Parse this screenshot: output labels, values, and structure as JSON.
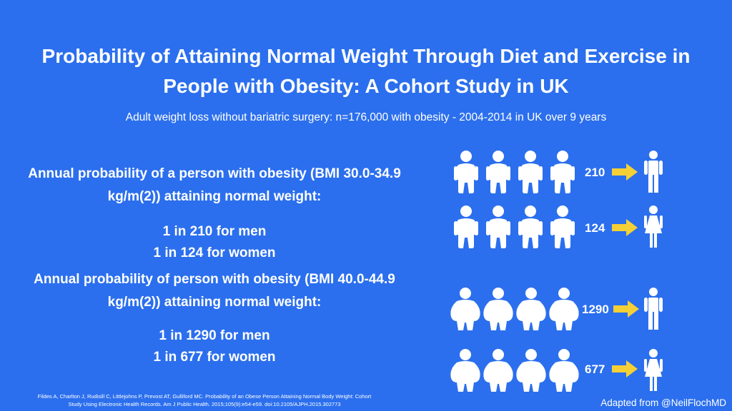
{
  "title_line1": "Probability of Attaining Normal Weight Through Diet and Exercise in",
  "title_line2": "People with Obesity: A Cohort Study in UK",
  "subtitle": "Adult weight loss without bariatric surgery: n=176,000 with obesity - 2004-2014 in UK over 9 years",
  "section1": {
    "heading_line1": "Annual probability of a person with obesity (BMI 30.0-34.9",
    "heading_line2": "kg/m(2)) attaining normal weight:",
    "men": "1 in 210 for men",
    "women": "1 in 124 for women"
  },
  "section2": {
    "heading_line1": "Annual probability of person with obesity (BMI 40.0-44.9",
    "heading_line2": "kg/m(2)) attaining normal weight:",
    "men": "1 in 1290 for men",
    "women": "1 in 677 for women"
  },
  "rows": [
    {
      "count": "210",
      "figure": "obese-person-icon",
      "result": "man-icon"
    },
    {
      "count": "124",
      "figure": "obese-person-icon",
      "result": "woman-icon"
    },
    {
      "count": "1290",
      "figure": "severely-obese-person-icon",
      "result": "man-icon"
    },
    {
      "count": "677",
      "figure": "severely-obese-person-icon",
      "result": "woman-icon"
    }
  ],
  "colors": {
    "background": "#2b6fee",
    "arrow": "#f5cf36",
    "text": "#ffffff"
  },
  "citation_line1": "Fildes A, Charlton J, Rudisill C, Littlejohns P, Prevost AT, Gulliford MC. Probability of an Obese Person Attaining Normal Body Weight: Cohort",
  "citation_line2": "Study Using Electronic Health Records. Am J Public Health. 2015;105(9):e54-e59. doi:10.2105/AJPH.2015.302773",
  "credit": "Adapted from @NeilFlochMD"
}
